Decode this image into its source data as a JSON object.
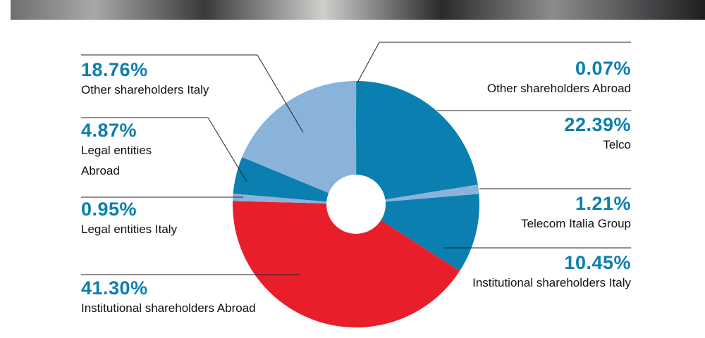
{
  "chart_data": {
    "type": "pie",
    "categories": [
      "Other shareholders Abroad",
      "Telco",
      "Telecom Italia Group",
      "Institutional shareholders Italy",
      "Institutional shareholders Abroad",
      "Legal entities Italy",
      "Legal entities Abroad",
      "Other shareholders Italy"
    ],
    "values": [
      0.07,
      22.39,
      1.21,
      10.45,
      41.3,
      0.95,
      4.87,
      18.76
    ],
    "value_labels": [
      "0.07%",
      "22.39%",
      "1.21%",
      "10.45%",
      "41.30%",
      "0.95%",
      "4.87%",
      "18.76%"
    ],
    "colors": [
      "#0a7fb0",
      "#0a7fb0",
      "#8ab3da",
      "#0a7fb0",
      "#e81f2b",
      "#8ab3da",
      "#0a7fb0",
      "#8ab3da"
    ]
  }
}
